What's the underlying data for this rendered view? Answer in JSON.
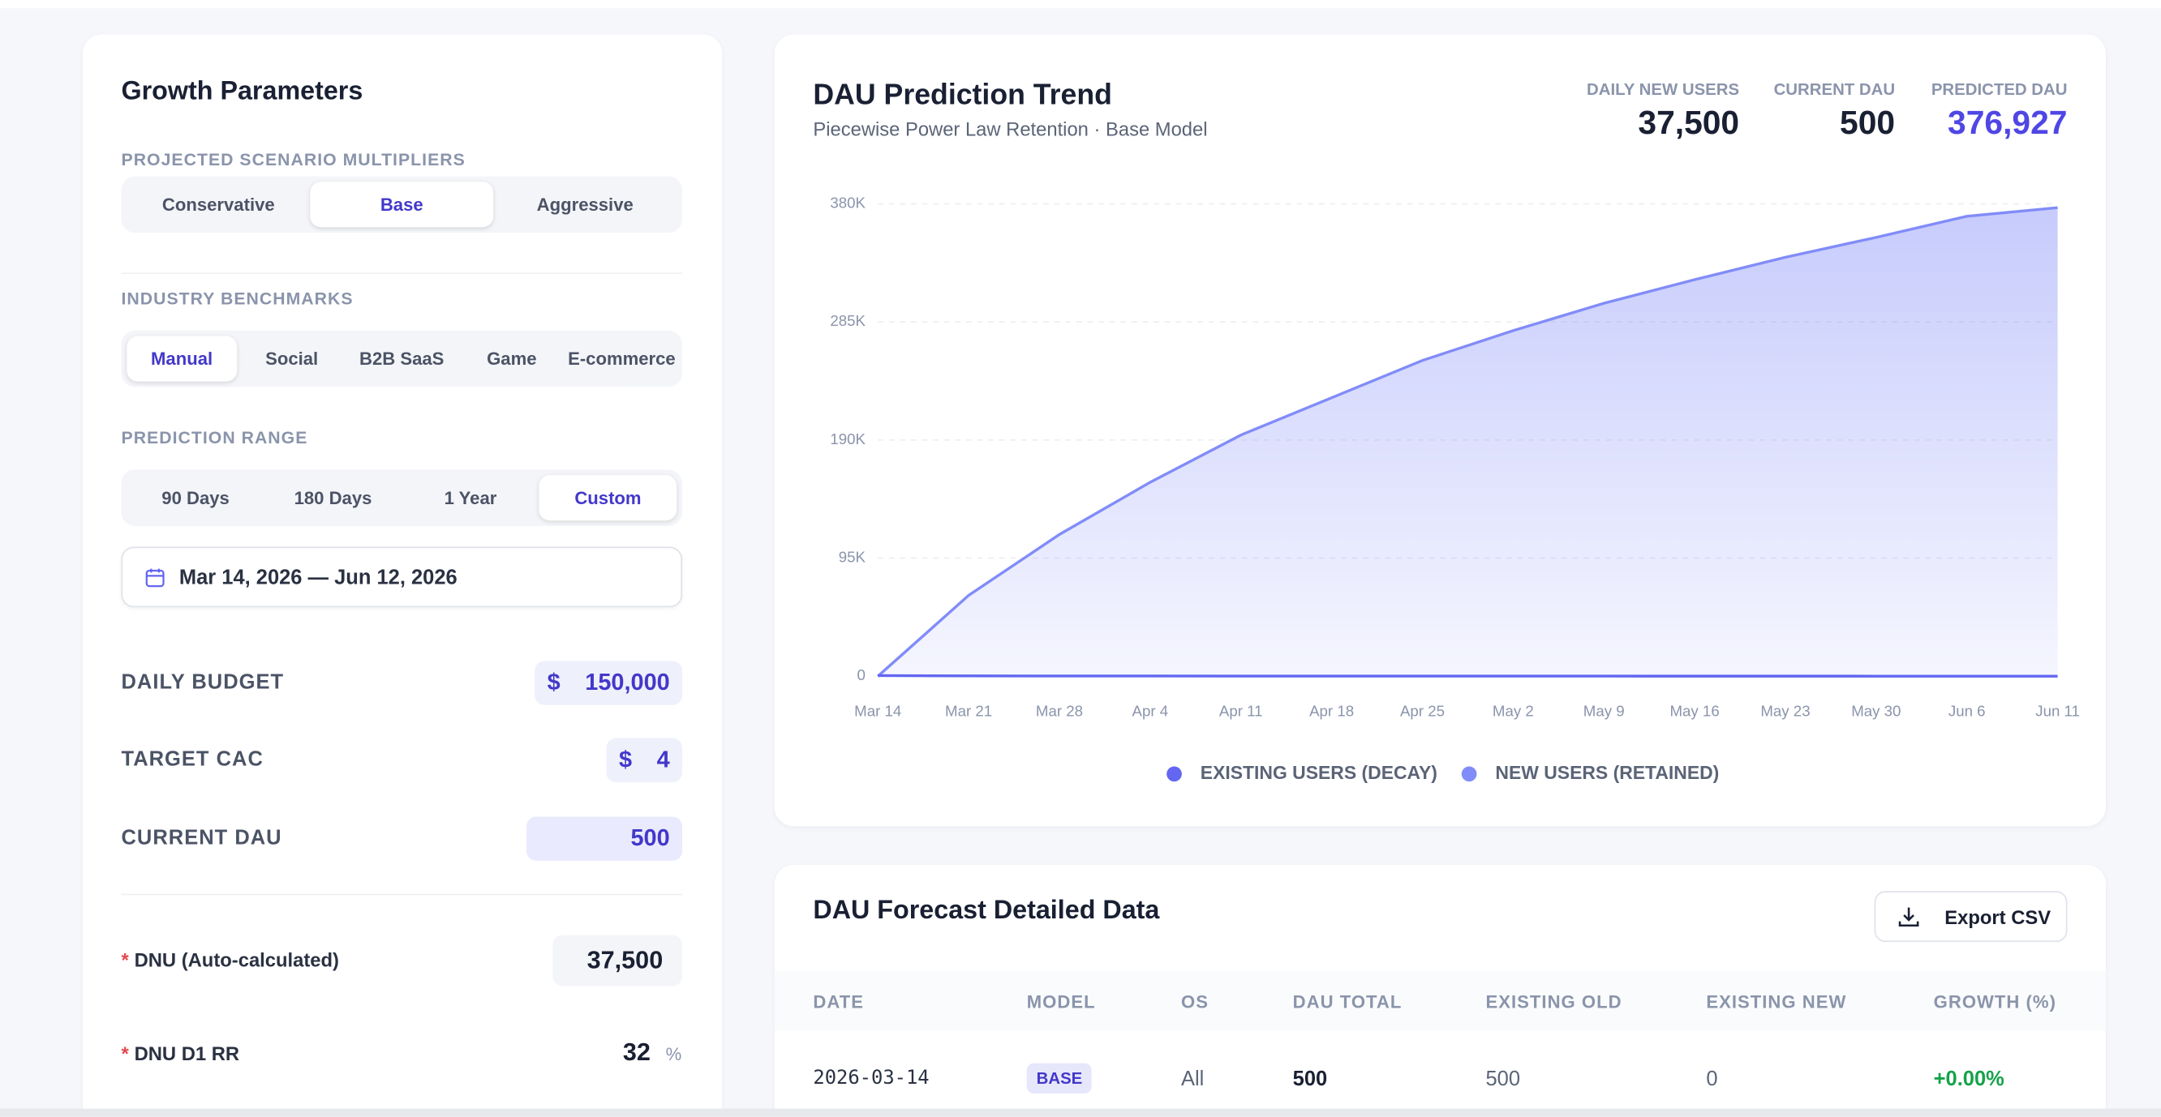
{
  "sidebar": {
    "title": "Growth Parameters",
    "scenario": {
      "label": "PROJECTED SCENARIO MULTIPLIERS",
      "options": [
        "Conservative",
        "Base",
        "Aggressive"
      ],
      "active": 1
    },
    "benchmarks": {
      "label": "INDUSTRY BENCHMARKS",
      "options": [
        "Manual",
        "Social",
        "B2B SaaS",
        "Game",
        "E-commerce"
      ],
      "active": 0
    },
    "range": {
      "label": "PREDICTION RANGE",
      "options": [
        "90 Days",
        "180 Days",
        "1 Year",
        "Custom"
      ],
      "active": 3
    },
    "date_range": "Mar 14, 2026 — Jun 12, 2026",
    "fields": [
      {
        "label": "DAILY BUDGET",
        "prefix": "$",
        "value": "150,000"
      },
      {
        "label": "TARGET CAC",
        "prefix": "$",
        "value": "4"
      },
      {
        "label": "CURRENT DAU",
        "value": "500"
      }
    ],
    "required": [
      {
        "marker": "*",
        "label": "DNU (Auto-calculated)",
        "value": "37,500"
      },
      {
        "marker": "*",
        "label": "DNU D1 RR",
        "value": "32",
        "unit": "%"
      }
    ]
  },
  "kpis": [
    {
      "label": "DAILY NEW USERS",
      "value": "37,500"
    },
    {
      "label": "CURRENT DAU",
      "value": "500"
    },
    {
      "label": "PREDICTED DAU",
      "value": "376,927",
      "highlight": true
    }
  ],
  "chart_data": {
    "type": "area",
    "title": "DAU Prediction Trend",
    "subtitle": "Piecewise Power Law Retention · Base Model",
    "categories": [
      "Mar 14",
      "Mar 21",
      "Mar 28",
      "Apr 4",
      "Apr 11",
      "Apr 18",
      "Apr 25",
      "May 2",
      "May 9",
      "May 16",
      "May 23",
      "May 30",
      "Jun 6",
      "Jun 11"
    ],
    "series": [
      {
        "name": "EXISTING USERS (DECAY)",
        "color": "#6366f1",
        "values": [
          500,
          250,
          180,
          140,
          110,
          90,
          80,
          70,
          60,
          50,
          45,
          40,
          35,
          30
        ]
      },
      {
        "name": "NEW USERS (RETAINED)",
        "color": "#818cf8",
        "values": [
          0,
          65000,
          114000,
          156000,
          194000,
          224000,
          254000,
          278000,
          300000,
          319000,
          337000,
          353000,
          370000,
          376927
        ]
      }
    ],
    "ylim": [
      0,
      380000
    ],
    "yticks": [
      0,
      {
        "value": 95000,
        "label": "95K"
      },
      {
        "value": 190000,
        "label": "190K"
      },
      {
        "value": 285000,
        "label": "285K"
      },
      {
        "value": 380000,
        "label": "380K"
      }
    ],
    "grid": true,
    "legend": "bottom"
  },
  "table": {
    "title": "DAU Forecast Detailed Data",
    "export": "Export CSV",
    "columns": [
      "DATE",
      "MODEL",
      "OS",
      "DAU TOTAL",
      "EXISTING OLD",
      "EXISTING NEW",
      "GROWTH (%)"
    ],
    "rows": [
      [
        "2026-03-14",
        "BASE",
        "All",
        "500",
        "500",
        "0",
        "+0.00%"
      ]
    ]
  }
}
